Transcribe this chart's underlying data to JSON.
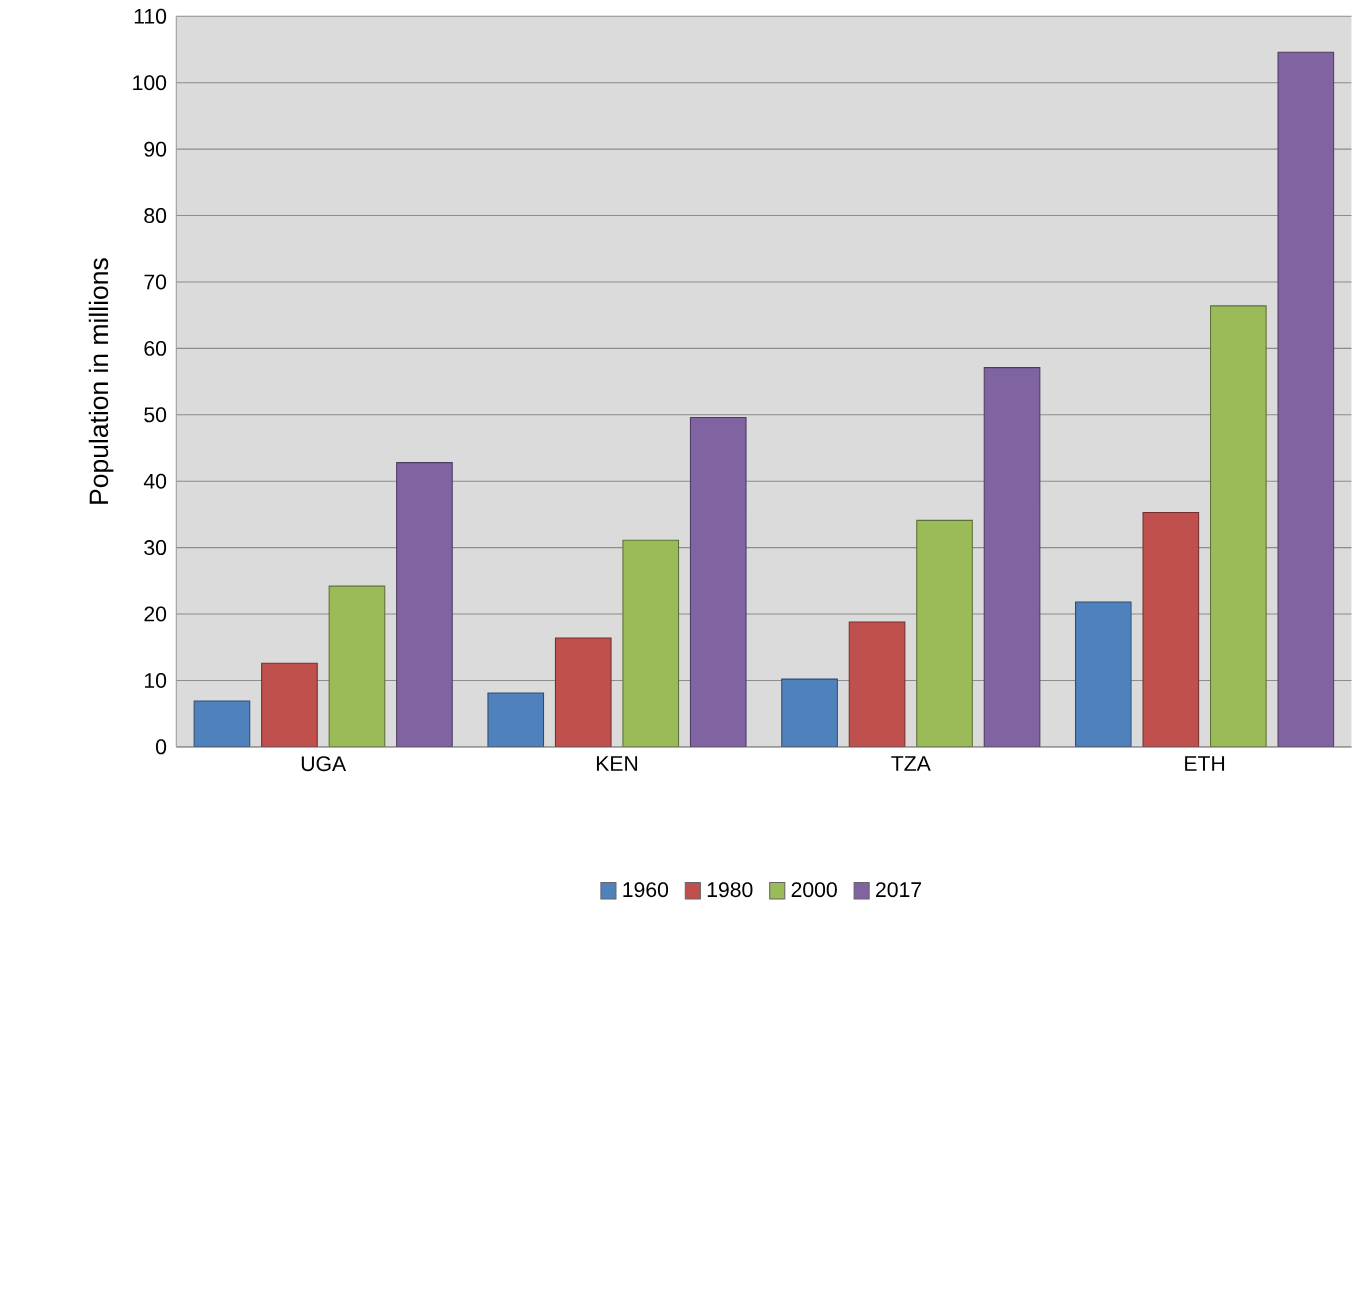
{
  "chart_data": {
    "type": "bar",
    "ylabel": "Population in millions",
    "categories": [
      "UGA",
      "KEN",
      "TZA",
      "ETH"
    ],
    "series": [
      {
        "name": "1960",
        "color": "#4f81bd",
        "values": [
          6.9,
          8.1,
          10.2,
          21.8
        ]
      },
      {
        "name": "1980",
        "color": "#c0504d",
        "values": [
          12.6,
          16.4,
          18.8,
          35.3
        ]
      },
      {
        "name": "2000",
        "color": "#9bbb59",
        "values": [
          24.2,
          31.1,
          34.1,
          66.4
        ]
      },
      {
        "name": "2017",
        "color": "#8064a2",
        "values": [
          42.8,
          49.6,
          57.1,
          104.6
        ]
      }
    ],
    "ylim": [
      0,
      110
    ],
    "yticks": [
      0,
      10,
      20,
      30,
      40,
      50,
      60,
      70,
      80,
      90,
      100,
      110
    ],
    "grid": "y",
    "legend": "bottom"
  }
}
